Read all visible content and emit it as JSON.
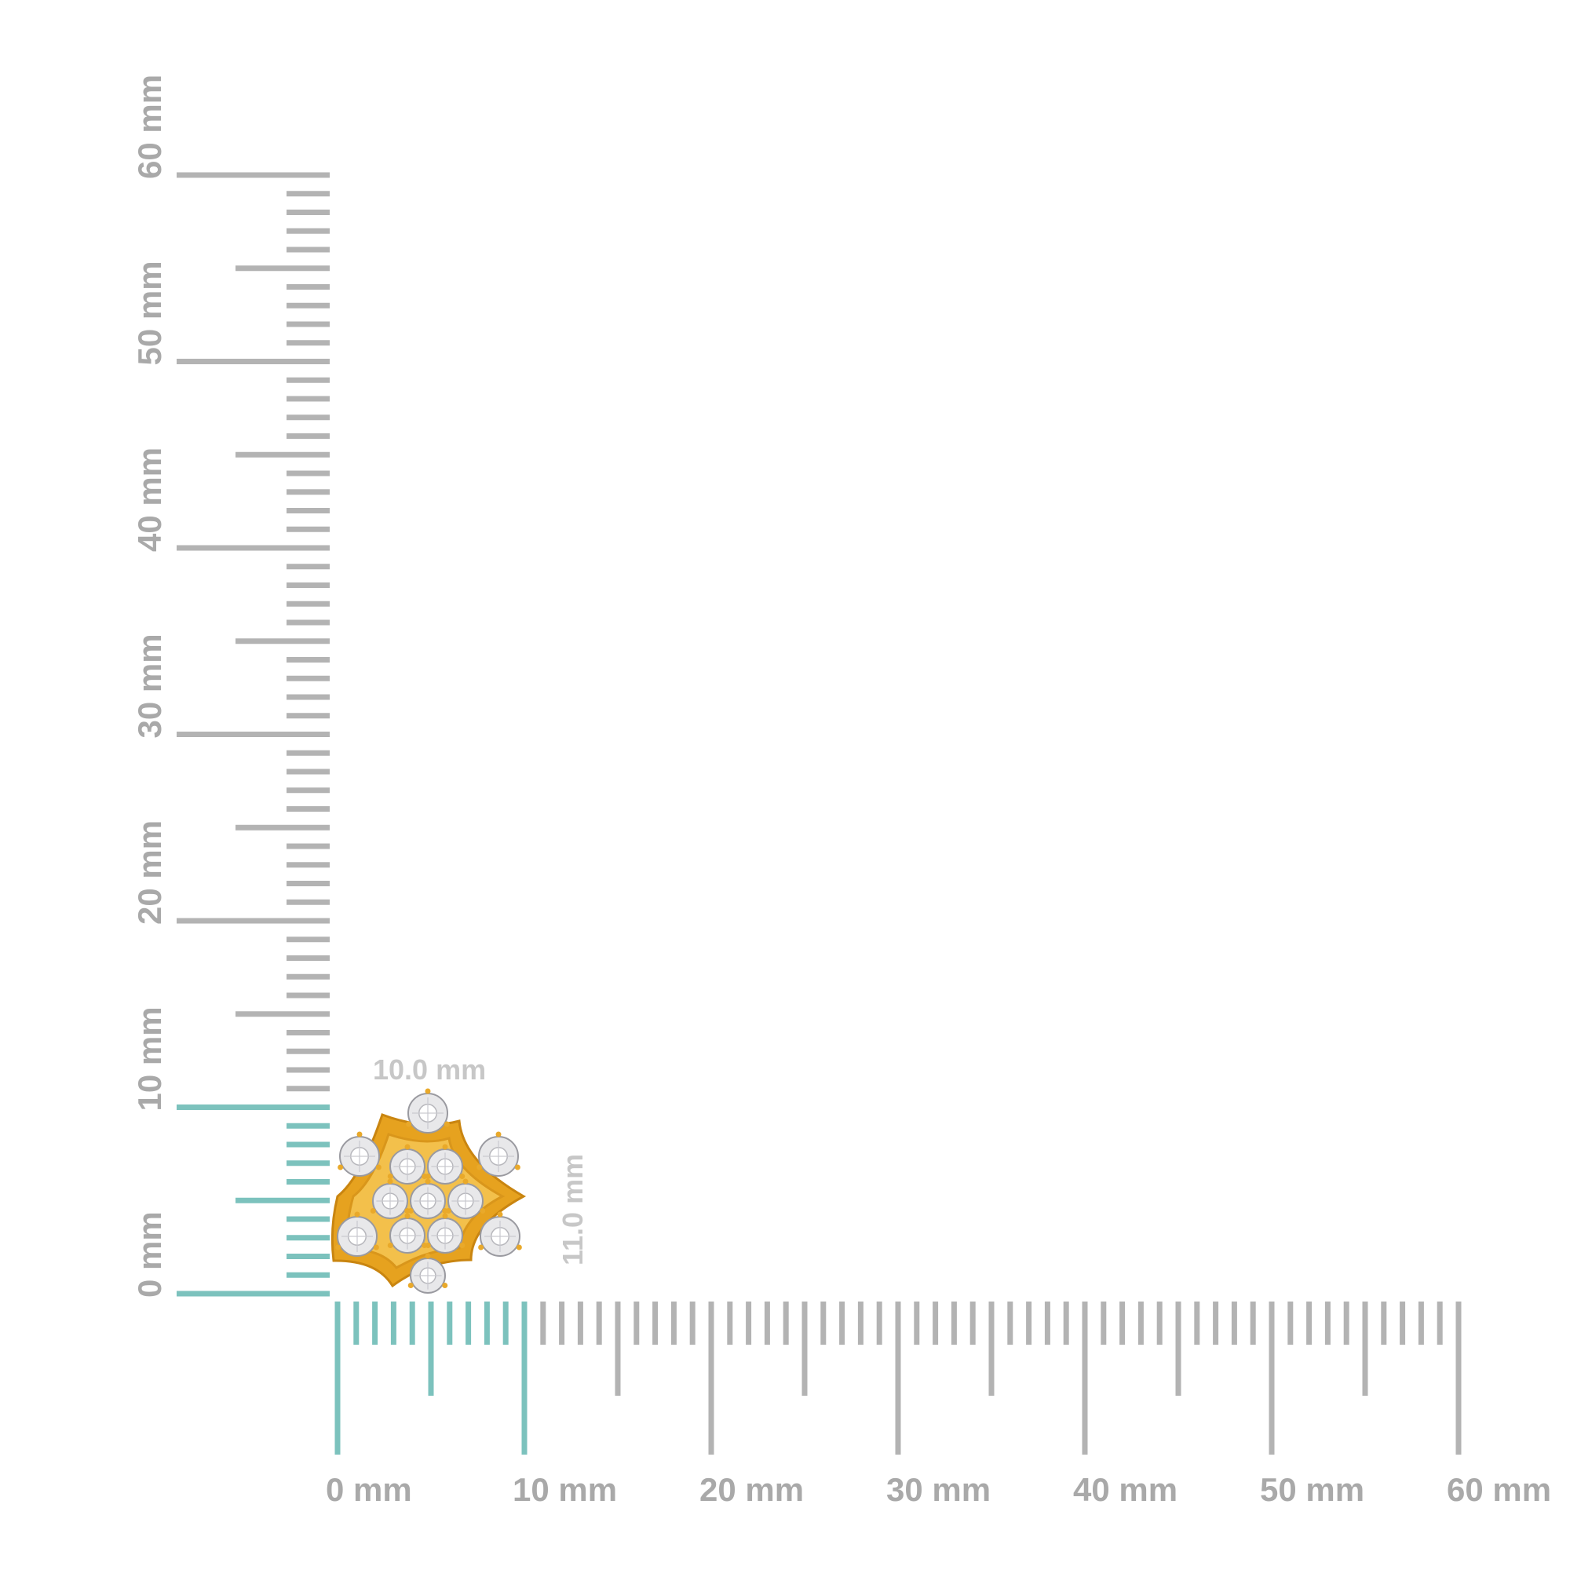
{
  "rulers": {
    "unit": "mm",
    "range_mm": [
      0,
      60
    ],
    "minor_step_mm": 1,
    "mid_step_mm": 5,
    "major_step_mm": 10,
    "highlight_range_mm": [
      0,
      10
    ],
    "colors": {
      "tick": "#b3b3b3",
      "highlight": "#7cc2bd",
      "label": "#a9a9a9",
      "dimension_label": "#c7c7c7"
    },
    "horizontal_labels": [
      "0 mm",
      "10 mm",
      "20 mm",
      "30 mm",
      "40 mm",
      "50 mm",
      "60 mm"
    ],
    "vertical_labels": [
      "0 mm",
      "10 mm",
      "20 mm",
      "30 mm",
      "40 mm",
      "50 mm",
      "60 mm"
    ]
  },
  "product": {
    "width_label": "10.0 mm",
    "height_label": "11.0 mm",
    "width_mm": 10.0,
    "height_mm": 11.0,
    "metal_color": "#e9a92a",
    "stone_color": "#e8e8ea",
    "stone_count": 13
  }
}
